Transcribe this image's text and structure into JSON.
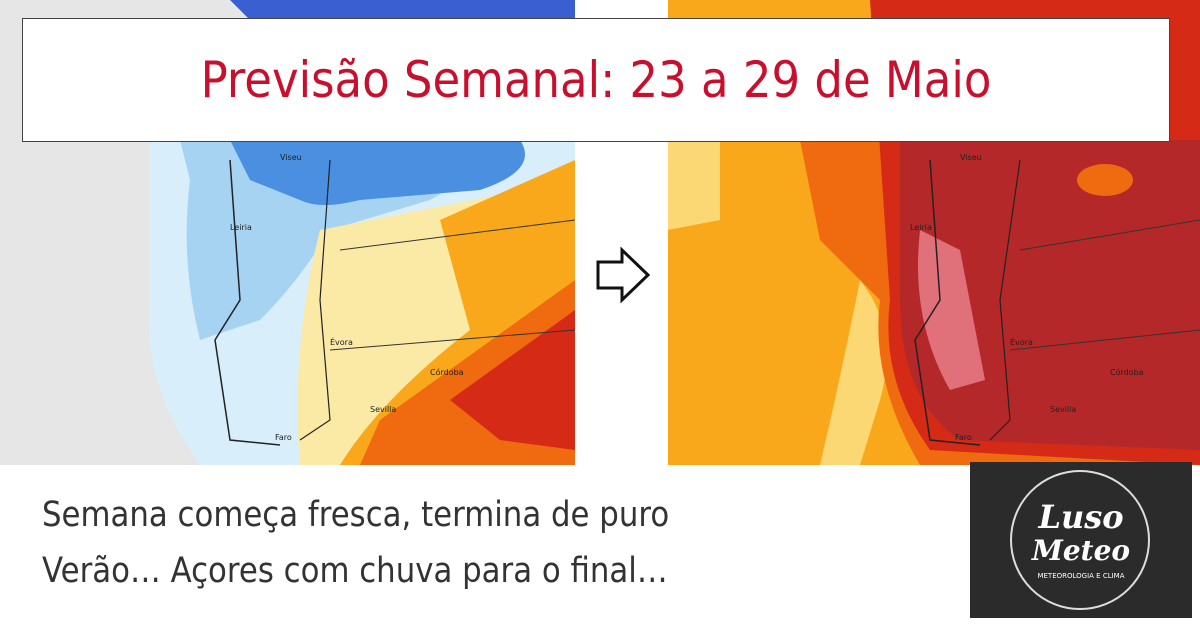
{
  "header": {
    "title": "Previsão Semanal: 23 a 29 de Maio"
  },
  "caption": {
    "lines": [
      "Semana começa fresca, termina de puro",
      "Verão… Açores com chuva para o final…"
    ]
  },
  "logo": {
    "word1": "Luso",
    "word2": "Meteo",
    "tagline": "METEOROLOGIA E CLIMA"
  },
  "maps": {
    "left_labels": [
      "Viseu",
      "Leiria",
      "Évora",
      "Sevilla",
      "Córdoba",
      "Faro"
    ],
    "right_labels": [
      "Viseu",
      "Leiria",
      "Évora",
      "Sevilla",
      "Córdoba",
      "Faro"
    ]
  }
}
